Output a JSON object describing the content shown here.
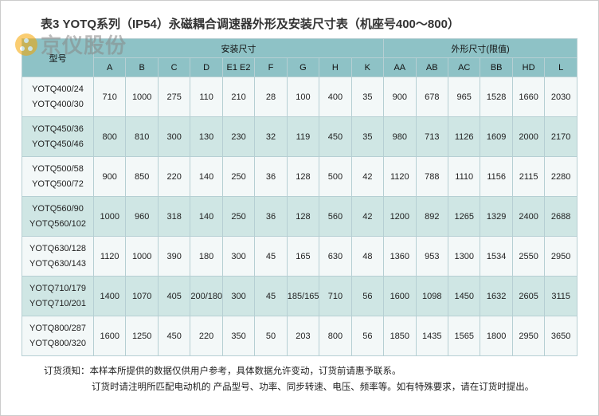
{
  "title": "表3 YOTQ系列（IP54）永磁耦合调速器外形及安装尺寸表（机座号400～800）",
  "watermark_text": "京仪股份",
  "header": {
    "model": "型号",
    "install_group": "安装尺寸",
    "outline_group": "外形尺寸(限值)",
    "cols_install": [
      "A",
      "B",
      "C",
      "D",
      "E1 E2",
      "F",
      "G",
      "H",
      "K"
    ],
    "cols_outline": [
      "AA",
      "AB",
      "AC",
      "BB",
      "HD",
      "L"
    ]
  },
  "rows": [
    {
      "models": [
        "YOTQ400/24",
        "YOTQ400/30"
      ],
      "vals": [
        "710",
        "1000",
        "275",
        "110",
        "210",
        "28",
        "100",
        "400",
        "35",
        "900",
        "678",
        "965",
        "1528",
        "1660",
        "2030"
      ]
    },
    {
      "models": [
        "YOTQ450/36",
        "YOTQ450/46"
      ],
      "vals": [
        "800",
        "810",
        "300",
        "130",
        "230",
        "32",
        "119",
        "450",
        "35",
        "980",
        "713",
        "1126",
        "1609",
        "2000",
        "2170"
      ]
    },
    {
      "models": [
        "YOTQ500/58",
        "YOTQ500/72"
      ],
      "vals": [
        "900",
        "850",
        "220",
        "140",
        "250",
        "36",
        "128",
        "500",
        "42",
        "1120",
        "788",
        "1110",
        "1156",
        "2115",
        "2280"
      ]
    },
    {
      "models": [
        "YOTQ560/90",
        "YOTQ560/102"
      ],
      "vals": [
        "1000",
        "960",
        "318",
        "140",
        "250",
        "36",
        "128",
        "560",
        "42",
        "1200",
        "892",
        "1265",
        "1329",
        "2400",
        "2688"
      ]
    },
    {
      "models": [
        "YOTQ630/128",
        "YOTQ630/143"
      ],
      "vals": [
        "1120",
        "1000",
        "390",
        "180",
        "300",
        "45",
        "165",
        "630",
        "48",
        "1360",
        "953",
        "1300",
        "1534",
        "2550",
        "2950"
      ]
    },
    {
      "models": [
        "YOTQ710/179",
        "YOTQ710/201"
      ],
      "vals": [
        "1400",
        "1070",
        "405",
        "200/180",
        "300",
        "45",
        "185/165",
        "710",
        "56",
        "1600",
        "1098",
        "1450",
        "1632",
        "2605",
        "3115"
      ]
    },
    {
      "models": [
        "YOTQ800/287",
        "YOTQ800/320"
      ],
      "vals": [
        "1600",
        "1250",
        "450",
        "220",
        "350",
        "50",
        "203",
        "800",
        "56",
        "1850",
        "1435",
        "1565",
        "1800",
        "2950",
        "3650"
      ]
    }
  ],
  "footnote": {
    "line1": "订货须知：本样本所提供的数据仅供用户参考，具体数据允许变动，订货前请惠予联系。",
    "line2": "订货时请注明所匹配电动机的 产品型号、功率、同步转速、电压、频率等。如有特殊要求，请在订货时提出。"
  },
  "colors": {
    "header_bg": "#8ec2c6",
    "row_odd_bg": "#f3f8f8",
    "row_even_bg": "#cfe6e4",
    "border": "#b6cfd3",
    "watermark_logo": "#f6a600",
    "watermark_text": "#888888",
    "text": "#222222",
    "page_bg": "#ffffff"
  }
}
